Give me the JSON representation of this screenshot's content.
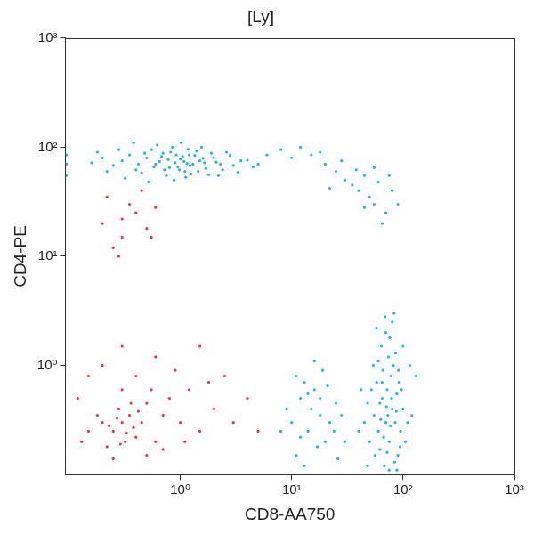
{
  "chart_data": {
    "type": "scatter",
    "title": "[Ly]",
    "x_label": "CD8-AA750",
    "y_label": "CD4-PE",
    "log": true,
    "grid": false,
    "marker": "dot",
    "xlim": [
      0.093,
      1000
    ],
    "ylim": [
      0.1,
      1000
    ],
    "xticks": [
      {
        "value": 1,
        "label": "10⁰"
      },
      {
        "value": 10,
        "label": "10¹"
      },
      {
        "value": 100,
        "label": "10²"
      },
      {
        "value": 1000,
        "label": "10³"
      }
    ],
    "yticks": [
      {
        "value": 1,
        "label": "10⁰"
      },
      {
        "value": 10,
        "label": "10¹"
      },
      {
        "value": 100,
        "label": "10²"
      },
      {
        "value": 1000,
        "label": "10³"
      }
    ],
    "series": [
      {
        "color": "#e8343a",
        "x": [
          0.3,
          0.25,
          0.35,
          0.2,
          0.4,
          0.28,
          0.32,
          0.22,
          0.45,
          0.5,
          0.18,
          0.15,
          0.6,
          0.7,
          0.8,
          1.0,
          1.2,
          1.5,
          2.0,
          2.5,
          3.0,
          0.12,
          0.3,
          0.4,
          0.2,
          0.6,
          0.9,
          1.5,
          0.3,
          0.15,
          0.5,
          0.25,
          0.38,
          0.27,
          0.33,
          0.42,
          0.23,
          4.0,
          5.0,
          1.8,
          0.7,
          1.1,
          0.55,
          0.13,
          0.36,
          0.29,
          0.2,
          0.3,
          0.4,
          0.25,
          0.35,
          0.5,
          0.45,
          0.3,
          0.6,
          0.22,
          0.28,
          0.55
        ],
        "values": [
          0.3,
          0.25,
          0.35,
          0.3,
          0.22,
          0.4,
          0.2,
          0.18,
          0.3,
          0.45,
          0.35,
          0.25,
          0.2,
          0.35,
          0.5,
          0.3,
          0.6,
          0.25,
          0.4,
          0.8,
          0.3,
          0.5,
          0.6,
          0.8,
          1.0,
          1.2,
          0.9,
          1.5,
          1.5,
          0.8,
          0.15,
          0.14,
          0.27,
          0.33,
          0.24,
          0.38,
          0.28,
          0.5,
          0.25,
          0.7,
          0.17,
          0.2,
          0.6,
          0.2,
          0.45,
          0.19,
          20,
          15,
          25,
          12,
          30,
          18,
          40,
          22,
          28,
          35,
          10,
          15
        ]
      },
      {
        "color": "#1cb4ea",
        "x": [
          0.3,
          0.4,
          0.5,
          0.6,
          0.7,
          0.8,
          0.9,
          1.0,
          1.1,
          1.2,
          1.3,
          1.5,
          1.7,
          2.0,
          2.3,
          2.6,
          3.0,
          3.5,
          0.25,
          0.35,
          0.45,
          0.55,
          0.65,
          0.75,
          0.85,
          0.95,
          1.05,
          1.15,
          1.25,
          1.4,
          1.6,
          1.8,
          2.1,
          2.4,
          2.8,
          3.3,
          4.0,
          4.5,
          0.2,
          0.22,
          0.28,
          0.32,
          0.38,
          0.42,
          0.48,
          0.52,
          0.58,
          0.62,
          0.68,
          0.72,
          0.78,
          0.82,
          0.88,
          0.92,
          0.98,
          1.02,
          1.08,
          1.12,
          1.18,
          1.22,
          1.35,
          1.45,
          1.55,
          1.65,
          1.9,
          2.2,
          0.16,
          0.18,
          5.0,
          6.0,
          0.095,
          0.095,
          0.095,
          8,
          10,
          12,
          15,
          20,
          25,
          30,
          35,
          40,
          45,
          50,
          55,
          60,
          70,
          80,
          65,
          90,
          45,
          38,
          28,
          18,
          22,
          55,
          75,
          70,
          60,
          80,
          75,
          65,
          85,
          90,
          55,
          72,
          68,
          78,
          62,
          88,
          95,
          50,
          58,
          82,
          74,
          66,
          92,
          100,
          110,
          48,
          45,
          52,
          64,
          76,
          86,
          70,
          60,
          80,
          56,
          94,
          84,
          62,
          73,
          77,
          67,
          71,
          79,
          63,
          87,
          91,
          97,
          105,
          120,
          130,
          42,
          40,
          54,
          69,
          83,
          58,
          100,
          115,
          48,
          75,
          88,
          65,
          72,
          10,
          12,
          14,
          15,
          18,
          20,
          11,
          13,
          16,
          22,
          25,
          9,
          17,
          19,
          24,
          28,
          12,
          14,
          21,
          30,
          8,
          16,
          26,
          11,
          13,
          18
        ],
        "values": [
          75,
          62,
          80,
          70,
          88,
          65,
          72,
          78,
          60,
          85,
          70,
          75,
          64,
          80,
          70,
          90,
          68,
          75,
          68,
          85,
          58,
          95,
          74,
          55,
          100,
          66,
          82,
          71,
          57,
          92,
          79,
          56,
          73,
          62,
          84,
          59,
          76,
          66,
          80,
          60,
          95,
          52,
          110,
          70,
          88,
          48,
          66,
          105,
          82,
          62,
          77,
          90,
          50,
          85,
          62,
          110,
          74,
          53,
          96,
          68,
          84,
          60,
          100,
          72,
          88,
          55,
          72,
          90,
          70,
          85,
          70,
          85,
          55,
          95,
          80,
          100,
          85,
          70,
          60,
          50,
          45,
          40,
          55,
          35,
          30,
          48,
          25,
          40,
          20,
          30,
          28,
          62,
          75,
          90,
          42,
          65,
          55,
          0.3,
          0.25,
          0.4,
          0.2,
          0.5,
          0.3,
          0.15,
          0.35,
          0.6,
          0.12,
          0.8,
          0.45,
          0.55,
          0.25,
          0.2,
          0.7,
          1.0,
          1.2,
          0.9,
          0.7,
          0.4,
          0.3,
          0.45,
          0.3,
          0.6,
          1.5,
          1.8,
          1.3,
          2.0,
          1.1,
          2.5,
          0.15,
          0.18,
          0.13,
          0.17,
          0.35,
          0.28,
          0.22,
          0.42,
          0.5,
          0.32,
          0.38,
          0.9,
          0.6,
          0.2,
          0.35,
          0.8,
          0.6,
          0.25,
          1.0,
          2.8,
          3.0,
          2.2,
          1.5,
          1.0,
          0.12,
          0.11,
          0.11,
          0.7,
          0.16,
          0.3,
          0.5,
          0.25,
          0.4,
          0.35,
          0.2,
          0.15,
          0.7,
          0.6,
          0.3,
          0.45,
          0.4,
          0.18,
          0.9,
          0.25,
          0.35,
          0.22,
          0.55,
          0.65,
          0.2,
          0.25,
          1.1,
          0.14,
          0.8,
          0.12,
          0.5
        ]
      }
    ]
  }
}
